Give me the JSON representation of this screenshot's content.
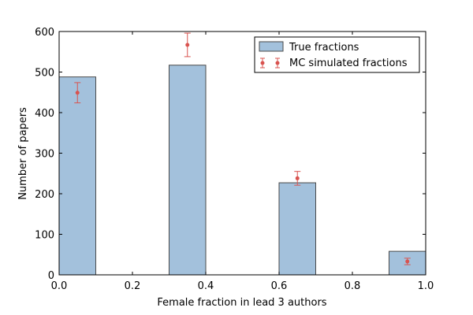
{
  "chart_data": {
    "type": "bar",
    "xlabel": "Female fraction in lead 3 authors",
    "ylabel": "Number of papers",
    "xlim": [
      0.0,
      1.0
    ],
    "ylim": [
      0,
      600
    ],
    "xticks": [
      "0.0",
      "0.2",
      "0.4",
      "0.6",
      "0.8",
      "1.0"
    ],
    "yticks": [
      "0",
      "100",
      "200",
      "300",
      "400",
      "500",
      "600"
    ],
    "bar_color": "#a3c1dc",
    "bar_edge_color": "#4a4a4a",
    "marker_color": "#d9534f",
    "grid": false,
    "legend_position": "top-right",
    "series": [
      {
        "name": "True fractions",
        "kind": "bar",
        "bars": [
          {
            "x_start": 0.0,
            "x_end": 0.1,
            "value": 488
          },
          {
            "x_start": 0.3,
            "x_end": 0.4,
            "value": 517
          },
          {
            "x_start": 0.6,
            "x_end": 0.7,
            "value": 227
          },
          {
            "x_start": 0.9,
            "x_end": 1.0,
            "value": 58
          }
        ]
      },
      {
        "name": "MC simulated fractions",
        "kind": "errorbar",
        "points": [
          {
            "x": 0.05,
            "y": 449,
            "err": 25
          },
          {
            "x": 0.35,
            "y": 567,
            "err": 29
          },
          {
            "x": 0.65,
            "y": 238,
            "err": 17
          },
          {
            "x": 0.95,
            "y": 33,
            "err": 8
          }
        ]
      }
    ]
  }
}
